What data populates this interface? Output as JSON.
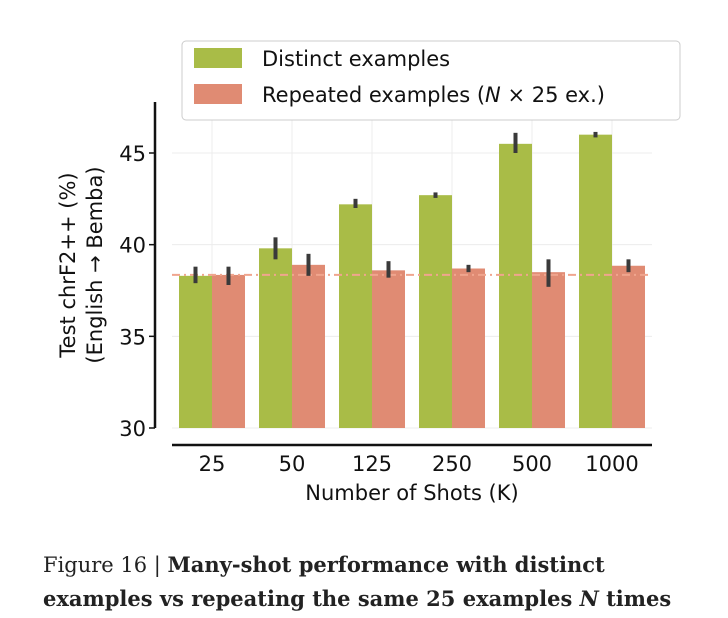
{
  "chart_data": {
    "type": "bar",
    "xlabel": "Number of Shots (K)",
    "ylabel_line1": "Test chrF2++ (%)",
    "ylabel_line2": "(English → Bemba)",
    "categories": [
      "25",
      "50",
      "125",
      "250",
      "500",
      "1000"
    ],
    "ylim": [
      30,
      48
    ],
    "yticks": [
      30,
      35,
      40,
      45
    ],
    "grid": true,
    "legend_position": "top",
    "reference_line": 38.35,
    "series": [
      {
        "name": "Distinct examples",
        "color": "#a9bc47",
        "values": [
          38.3,
          39.8,
          42.2,
          42.7,
          45.5,
          46.0
        ],
        "err_low": [
          37.9,
          39.2,
          42.0,
          42.55,
          45.0,
          45.85
        ],
        "err_high": [
          38.8,
          40.4,
          42.5,
          42.85,
          46.1,
          46.15
        ]
      },
      {
        "name": "Repeated examples",
        "name_suffix": "(N × 25 ex.)",
        "color": "#e08b73",
        "values": [
          38.35,
          38.9,
          38.6,
          38.7,
          38.5,
          38.85
        ],
        "err_low": [
          37.8,
          38.3,
          38.2,
          38.5,
          37.7,
          38.5
        ],
        "err_high": [
          38.8,
          39.5,
          39.1,
          38.9,
          39.2,
          39.2
        ]
      }
    ]
  },
  "caption": {
    "lead": "Figure 16 | ",
    "text": "Many-shot performance with distinct examples vs repeating the same 25 examples ",
    "var": "N",
    "tail": " times"
  }
}
